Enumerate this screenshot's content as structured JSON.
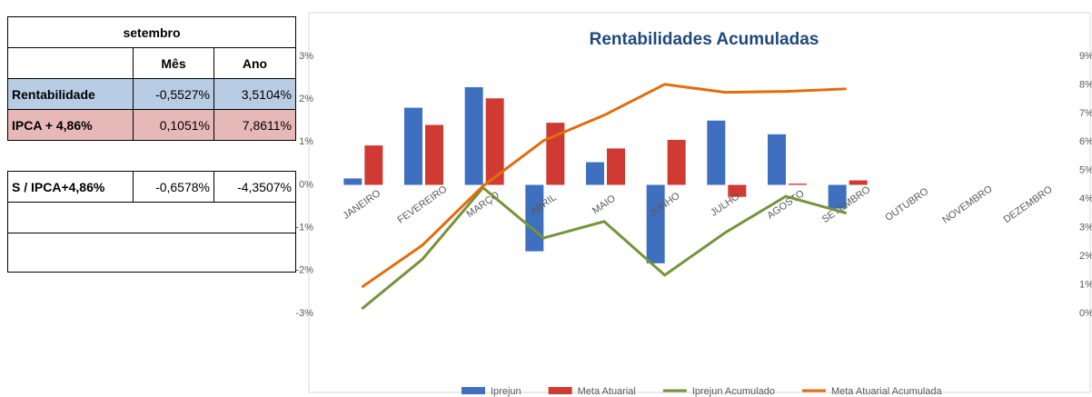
{
  "table": {
    "title": "setembro",
    "header": [
      "Mês",
      "Ano"
    ],
    "rows": [
      {
        "label": "Rentabilidade",
        "values": [
          "-0,5527%",
          "3,5104%"
        ]
      },
      {
        "label": "IPCA + 4,86%",
        "values": [
          "0,1051%",
          "7,8611%"
        ]
      },
      {
        "label": "S / IPCA+4,86%",
        "values": [
          "-0,6578%",
          "-4,3507%"
        ]
      }
    ]
  },
  "chart_data": {
    "type": "bar-line",
    "title": "Rentabilidades Acumuladas",
    "categories": [
      "JANEIRO",
      "FEVEREIRO",
      "MARÇO",
      "ABRIL",
      "MAIO",
      "JUNHO",
      "JULHO",
      "AGOSTO",
      "SETEMBRO",
      "OUTUBRO",
      "NOVEMBRO",
      "DEZEMBRO"
    ],
    "series": [
      {
        "name": "Iprejun",
        "type": "bar",
        "color": "#3f6fbf",
        "values": [
          0.15,
          1.8,
          2.28,
          -1.55,
          0.53,
          -1.83,
          1.5,
          1.18,
          -0.5527,
          null,
          null,
          null
        ]
      },
      {
        "name": "Meta Atuarial",
        "type": "bar",
        "color": "#cf3a32",
        "values": [
          0.92,
          1.4,
          2.02,
          1.45,
          0.85,
          1.05,
          -0.28,
          0.03,
          0.1051,
          null,
          null,
          null
        ]
      },
      {
        "name": "Iprejun Acumulado",
        "type": "line",
        "axis": "y2",
        "color": "#77933c",
        "values": [
          0.16,
          1.9,
          4.4,
          2.64,
          3.22,
          1.34,
          2.83,
          4.1,
          3.5104,
          null,
          null,
          null
        ]
      },
      {
        "name": "Meta Atuarial Acumulada",
        "type": "line",
        "axis": "y2",
        "color": "#e46c0a",
        "values": [
          0.92,
          2.39,
          4.46,
          6.05,
          6.94,
          8.02,
          7.74,
          7.77,
          7.8611,
          null,
          null,
          null
        ]
      }
    ],
    "ylim": [
      -3,
      3
    ],
    "yticks": [
      {
        "value": -3,
        "label": "-3%"
      },
      {
        "value": -2,
        "label": "-2%"
      },
      {
        "value": -1,
        "label": "-1%"
      },
      {
        "value": 0,
        "label": "0%"
      },
      {
        "value": 1,
        "label": "1%"
      },
      {
        "value": 2,
        "label": "2%"
      },
      {
        "value": 3,
        "label": "3%"
      }
    ],
    "y2lim": [
      0,
      9
    ],
    "y2ticks": [
      {
        "value": 0,
        "label": "0%"
      },
      {
        "value": 1,
        "label": "1%"
      },
      {
        "value": 2,
        "label": "2%"
      },
      {
        "value": 3,
        "label": "3%"
      },
      {
        "value": 4,
        "label": "4%"
      },
      {
        "value": 5,
        "label": "5%"
      },
      {
        "value": 6,
        "label": "6%"
      },
      {
        "value": 7,
        "label": "7%"
      },
      {
        "value": 8,
        "label": "8%"
      },
      {
        "value": 9,
        "label": "9%"
      }
    ],
    "legend": "bottom"
  }
}
